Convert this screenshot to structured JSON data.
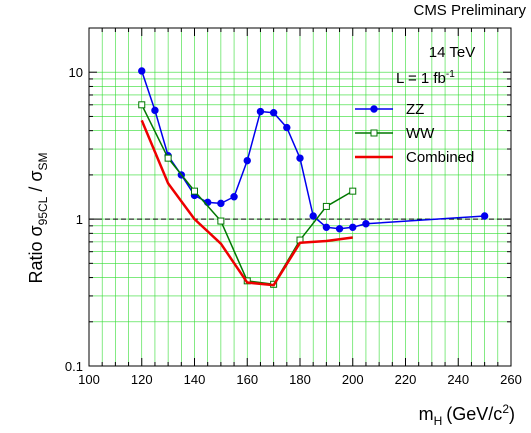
{
  "chart_data": {
    "type": "line",
    "title": "CMS Preliminary",
    "annotations": [
      "14 TeV",
      "L = 1 fb",
      "-1"
    ],
    "xlabel": {
      "main": "m",
      "sub": "H",
      "unit_pre": "(GeV/c",
      "unit_sup": "2",
      "unit_post": ")"
    },
    "ylabel": {
      "main": "Ratio  σ",
      "sub1": "95CL",
      "mid": " / σ",
      "sub2": "SM"
    },
    "xlim": [
      100,
      260
    ],
    "ylim": [
      0.1,
      20
    ],
    "yscale": "log",
    "x_ticks": [
      100,
      120,
      140,
      160,
      180,
      200,
      220,
      240,
      260
    ],
    "y_tick_labels": [
      {
        "value": 0.1,
        "label": "0.1"
      },
      {
        "value": 1,
        "label": "1"
      },
      {
        "value": 10,
        "label": "10"
      }
    ],
    "reference_line": 1,
    "grid": true,
    "legend_position": "right",
    "series": [
      {
        "name": "ZZ",
        "color": "#0000ee",
        "marker": "filled-circle",
        "x": [
          120,
          125,
          130,
          135,
          140,
          145,
          150,
          155,
          160,
          165,
          170,
          175,
          180,
          185,
          190,
          195,
          200,
          205,
          250
        ],
        "y": [
          10.2,
          5.5,
          2.7,
          2.0,
          1.45,
          1.3,
          1.28,
          1.42,
          2.5,
          5.4,
          5.3,
          4.2,
          2.6,
          1.05,
          0.88,
          0.86,
          0.88,
          0.93,
          1.05
        ]
      },
      {
        "name": "WW",
        "color": "#007700",
        "marker": "open-square",
        "x": [
          120,
          130,
          140,
          150,
          160,
          170,
          180,
          190,
          200
        ],
        "y": [
          6.0,
          2.6,
          1.55,
          0.97,
          0.38,
          0.36,
          0.72,
          1.22,
          1.55
        ]
      },
      {
        "name": "Combined",
        "color": "#ee0000",
        "marker": "none",
        "x": [
          120,
          130,
          140,
          150,
          160,
          170,
          180,
          190,
          200
        ],
        "y": [
          4.7,
          1.75,
          1.0,
          0.68,
          0.37,
          0.355,
          0.69,
          0.71,
          0.75
        ]
      }
    ]
  }
}
